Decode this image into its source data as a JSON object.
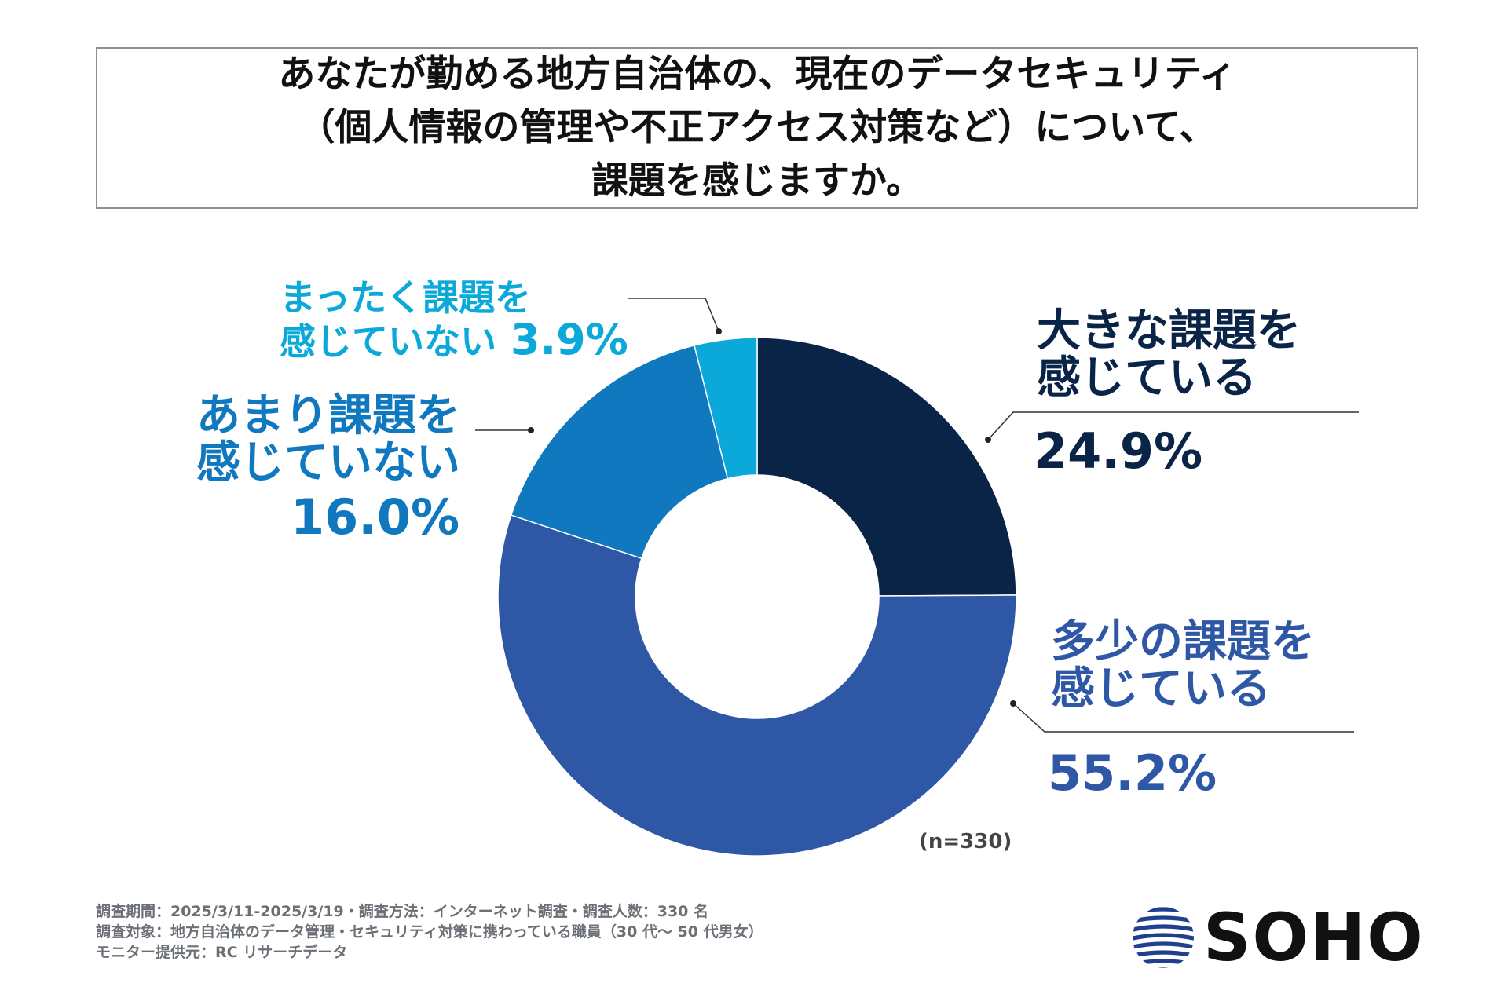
{
  "title": {
    "line1": "あなたが勤める地方自治体の、現在のデータセキュリティ",
    "line2": "（個人情報の管理や不正アクセス対策など）について、",
    "line3": "課題を感じますか。"
  },
  "chart_data": {
    "type": "pie",
    "style": "donut",
    "title": "あなたが勤める地方自治体の、現在のデータセキュリティ（個人情報の管理や不正アクセス対策など）について、課題を感じますか。",
    "n_label": "(n=330)",
    "slices": [
      {
        "line1": "大きな課題を",
        "line2": "感じている",
        "value": 24.9,
        "value_label": "24.9%",
        "color": "#0a2447"
      },
      {
        "line1": "多少の課題を",
        "line2": "感じている",
        "value": 55.2,
        "value_label": "55.2%",
        "color": "#2e57a6"
      },
      {
        "line1": "あまり課題を",
        "line2": "感じていない",
        "value": 16.0,
        "value_label": "16.0%",
        "color": "#0f78be"
      },
      {
        "line1": "まったく課題を",
        "line2": "感じていない",
        "value": 3.9,
        "value_label": "3.9%",
        "color": "#0aa9d9"
      }
    ]
  },
  "footer": {
    "line1": "調査期間：2025/3/11-2025/3/19・調査方法：インターネット調査・調査人数：330 名",
    "line2": "調査対象：地方自治体のデータ管理・セキュリティ対策に携わっている職員（30 代〜 50 代男女）",
    "line3": "モニター提供元：RC リサーチデータ"
  },
  "logo": {
    "text": "SOHO",
    "icon": "striped-globe-icon"
  }
}
